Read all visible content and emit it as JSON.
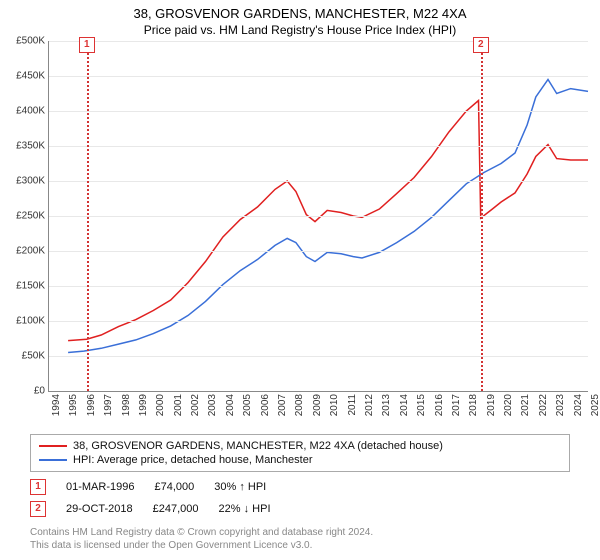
{
  "title": "38, GROSVENOR GARDENS, MANCHESTER, M22 4XA",
  "subtitle": "Price paid vs. HM Land Registry's House Price Index (HPI)",
  "chart": {
    "type": "line",
    "background_color": "#ffffff",
    "grid_color": "#e8e8e8",
    "axis_color": "#888888",
    "x": {
      "min": 1994,
      "max": 2025,
      "ticks": [
        1994,
        1995,
        1996,
        1997,
        1998,
        1999,
        2000,
        2001,
        2002,
        2003,
        2004,
        2005,
        2006,
        2007,
        2008,
        2009,
        2010,
        2011,
        2012,
        2013,
        2014,
        2015,
        2016,
        2017,
        2018,
        2019,
        2020,
        2021,
        2022,
        2023,
        2024,
        2025
      ],
      "tick_rotation_deg": -90,
      "tick_fontsize": 10
    },
    "y": {
      "min": 0,
      "max": 500000,
      "ticks": [
        0,
        50000,
        100000,
        150000,
        200000,
        250000,
        300000,
        350000,
        400000,
        450000,
        500000
      ],
      "tick_labels": [
        "£0",
        "£50K",
        "£100K",
        "£150K",
        "£200K",
        "£250K",
        "£300K",
        "£350K",
        "£400K",
        "£450K",
        "£500K"
      ],
      "tick_fontsize": 10
    },
    "series": [
      {
        "id": "price",
        "label": "38, GROSVENOR GARDENS, MANCHESTER, M22 4XA (detached house)",
        "color": "#e02020",
        "line_width": 1.5,
        "points": [
          [
            1995.1,
            72000
          ],
          [
            1996.17,
            74000
          ],
          [
            1997,
            80000
          ],
          [
            1998,
            92000
          ],
          [
            1999,
            102000
          ],
          [
            2000,
            115000
          ],
          [
            2001,
            130000
          ],
          [
            2002,
            155000
          ],
          [
            2003,
            185000
          ],
          [
            2004,
            220000
          ],
          [
            2005,
            245000
          ],
          [
            2006,
            263000
          ],
          [
            2007,
            288000
          ],
          [
            2007.7,
            300000
          ],
          [
            2008.2,
            285000
          ],
          [
            2008.8,
            252000
          ],
          [
            2009.3,
            242000
          ],
          [
            2010,
            258000
          ],
          [
            2010.8,
            255000
          ],
          [
            2011.5,
            250000
          ],
          [
            2012,
            248000
          ],
          [
            2013,
            260000
          ],
          [
            2014,
            282000
          ],
          [
            2015,
            305000
          ],
          [
            2016,
            335000
          ],
          [
            2017,
            370000
          ],
          [
            2018,
            400000
          ],
          [
            2018.7,
            415000
          ],
          [
            2018.83,
            247000
          ],
          [
            2019.5,
            260000
          ],
          [
            2020,
            270000
          ],
          [
            2020.8,
            283000
          ],
          [
            2021.5,
            310000
          ],
          [
            2022,
            335000
          ],
          [
            2022.7,
            352000
          ],
          [
            2023.2,
            332000
          ],
          [
            2024,
            330000
          ],
          [
            2025,
            330000
          ]
        ]
      },
      {
        "id": "hpi",
        "label": "HPI: Average price, detached house, Manchester",
        "color": "#3a6fd8",
        "line_width": 1.5,
        "points": [
          [
            1995.1,
            55000
          ],
          [
            1996,
            57000
          ],
          [
            1997,
            61000
          ],
          [
            1998,
            67000
          ],
          [
            1999,
            73000
          ],
          [
            2000,
            82000
          ],
          [
            2001,
            93000
          ],
          [
            2002,
            108000
          ],
          [
            2003,
            128000
          ],
          [
            2004,
            152000
          ],
          [
            2005,
            172000
          ],
          [
            2006,
            188000
          ],
          [
            2007,
            208000
          ],
          [
            2007.7,
            218000
          ],
          [
            2008.2,
            212000
          ],
          [
            2008.8,
            192000
          ],
          [
            2009.3,
            185000
          ],
          [
            2010,
            198000
          ],
          [
            2010.8,
            196000
          ],
          [
            2011.5,
            192000
          ],
          [
            2012,
            190000
          ],
          [
            2013,
            198000
          ],
          [
            2014,
            212000
          ],
          [
            2015,
            228000
          ],
          [
            2016,
            248000
          ],
          [
            2017,
            272000
          ],
          [
            2018,
            296000
          ],
          [
            2019,
            312000
          ],
          [
            2020,
            325000
          ],
          [
            2020.8,
            340000
          ],
          [
            2021.5,
            380000
          ],
          [
            2022,
            420000
          ],
          [
            2022.7,
            445000
          ],
          [
            2023.2,
            425000
          ],
          [
            2024,
            432000
          ],
          [
            2025,
            428000
          ]
        ]
      }
    ],
    "reference_lines": [
      {
        "id": 1,
        "x": 1996.17,
        "label": "1",
        "color": "#d33333",
        "style": "dotted"
      },
      {
        "id": 2,
        "x": 2018.83,
        "label": "2",
        "color": "#d33333",
        "style": "dotted"
      }
    ]
  },
  "legend": {
    "items": [
      {
        "color": "#e02020",
        "label": "38, GROSVENOR GARDENS, MANCHESTER, M22 4XA (detached house)"
      },
      {
        "color": "#3a6fd8",
        "label": "HPI: Average price, detached house, Manchester"
      }
    ]
  },
  "notes": [
    {
      "badge": "1",
      "date": "01-MAR-1996",
      "price": "£74,000",
      "delta": "30% ↑ HPI"
    },
    {
      "badge": "2",
      "date": "29-OCT-2018",
      "price": "£247,000",
      "delta": "22% ↓ HPI"
    }
  ],
  "attribution": {
    "line1": "Contains HM Land Registry data © Crown copyright and database right 2024.",
    "line2": "This data is licensed under the Open Government Licence v3.0."
  }
}
